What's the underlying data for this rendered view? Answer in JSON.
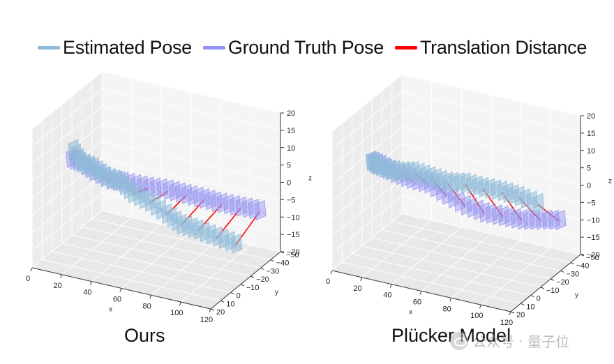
{
  "legend": [
    {
      "label": "Estimated Pose",
      "color": "#8fbbd9"
    },
    {
      "label": "Ground Truth Pose",
      "color": "#9492f2"
    },
    {
      "label": "Translation Distance",
      "color": "#ff0000"
    }
  ],
  "panels": [
    {
      "title": "Ours"
    },
    {
      "title": "Plücker Model"
    }
  ],
  "watermark": {
    "text": "公众号 · 量子位"
  },
  "chart_data": [
    {
      "type": "3d-trajectory",
      "title": "Ours",
      "xlabel": "x",
      "ylabel": "y",
      "zlabel": "z",
      "xlim": [
        0,
        120
      ],
      "ylim": [
        -50,
        20
      ],
      "zlim": [
        -20,
        20
      ],
      "xticks": [
        "0",
        "20",
        "40",
        "60",
        "80",
        "100",
        "120"
      ],
      "yticks": [
        "20",
        "10",
        "0",
        "−10",
        "−20",
        "−30",
        "−40",
        "−50"
      ],
      "zticks": [
        "20",
        "15",
        "10",
        "5",
        "0",
        "−5",
        "−10",
        "−15",
        "−20"
      ],
      "grid": true,
      "series": [
        {
          "name": "Estimated Pose",
          "type": "camera-frustums",
          "x": [
            2,
            10,
            20,
            30,
            40,
            50,
            60,
            70,
            80,
            90,
            100,
            110
          ],
          "y": [
            -18,
            -14,
            -12,
            -9,
            -8,
            -6,
            -8,
            -10,
            -10,
            -12,
            -16,
            -20
          ],
          "z": [
            5,
            3,
            3,
            2,
            2,
            0,
            -2,
            -5,
            -7,
            -8,
            -10,
            -12
          ]
        },
        {
          "name": "Ground Truth Pose",
          "type": "camera-frustums",
          "x": [
            2,
            10,
            20,
            30,
            40,
            50,
            60,
            70,
            80,
            90,
            100,
            110
          ],
          "y": [
            -16,
            -14,
            -12,
            -14,
            -18,
            -22,
            -27,
            -30,
            -33,
            -36,
            -40,
            -44
          ],
          "z": [
            3,
            3,
            2,
            0,
            -1,
            -2,
            -3,
            -4,
            -5,
            -6,
            -7,
            -8
          ]
        }
      ],
      "translation_distance": {
        "name": "Translation Distance",
        "type": "segments",
        "n": 12
      }
    },
    {
      "type": "3d-trajectory",
      "title": "Plücker Model",
      "xlabel": "x",
      "ylabel": "y",
      "zlabel": "z",
      "xlim": [
        0,
        120
      ],
      "ylim": [
        -50,
        20
      ],
      "zlim": [
        -20,
        20
      ],
      "xticks": [
        "0",
        "20",
        "40",
        "60",
        "80",
        "100",
        "120"
      ],
      "yticks": [
        "20",
        "10",
        "0",
        "−10",
        "−20",
        "−30",
        "−40",
        "−50"
      ],
      "zticks": [
        "20",
        "15",
        "10",
        "5",
        "0",
        "−5",
        "−10",
        "−15",
        "−20"
      ],
      "grid": true,
      "series": [
        {
          "name": "Estimated Pose",
          "type": "camera-frustums",
          "x": [
            2,
            10,
            20,
            30,
            40,
            50,
            60,
            70,
            80,
            90,
            100,
            110
          ],
          "y": [
            -16,
            -10,
            -5,
            -2,
            -2,
            -4,
            -6,
            -9,
            -12,
            -16,
            -18,
            -22
          ],
          "z": [
            3,
            4,
            5,
            6,
            7,
            6,
            5,
            5,
            4,
            3,
            2,
            0
          ]
        },
        {
          "name": "Ground Truth Pose",
          "type": "camera-frustums",
          "x": [
            2,
            10,
            20,
            30,
            40,
            50,
            60,
            70,
            80,
            90,
            100,
            110
          ],
          "y": [
            -16,
            -14,
            -13,
            -14,
            -17,
            -20,
            -24,
            -28,
            -32,
            -36,
            -40,
            -44
          ],
          "z": [
            3,
            3,
            2,
            1,
            0,
            -3,
            -6,
            -8,
            -9,
            -10,
            -10,
            -10
          ]
        }
      ],
      "translation_distance": {
        "name": "Translation Distance",
        "type": "segments",
        "n": 12
      }
    }
  ]
}
